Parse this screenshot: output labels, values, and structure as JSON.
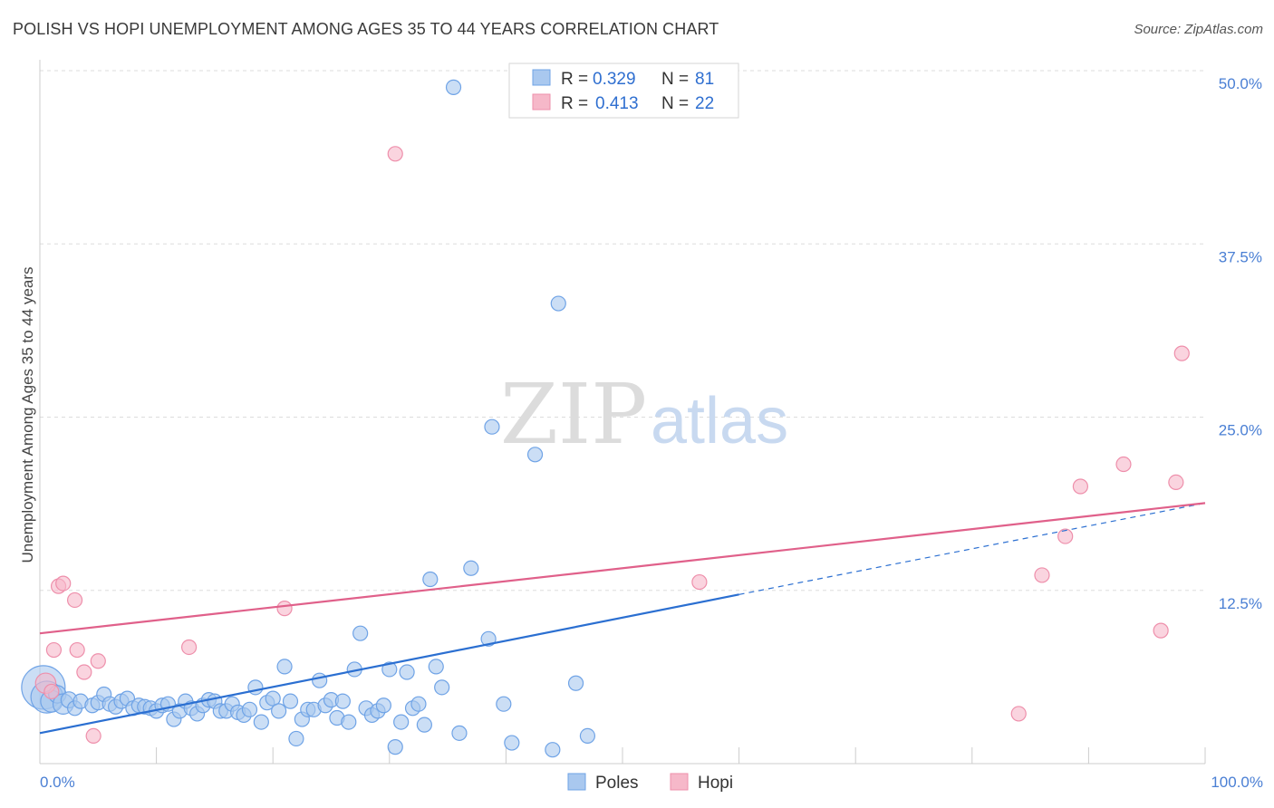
{
  "header": {
    "title": "POLISH VS HOPI UNEMPLOYMENT AMONG AGES 35 TO 44 YEARS CORRELATION CHART",
    "source": "Source: ZipAtlas.com"
  },
  "watermark": {
    "zip": "ZIP",
    "atlas": "atlas"
  },
  "legend": {
    "rows": [
      {
        "r_label": "R =",
        "r_value": "0.329",
        "n_label": "N =",
        "n_value": "81",
        "color": "#a9c8ef"
      },
      {
        "r_label": "R =",
        "r_value": "0.413",
        "n_label": "N =",
        "n_value": "22",
        "color": "#f6b8c9"
      }
    ]
  },
  "bottom_legend": {
    "items": [
      "Poles",
      "Hopi"
    ]
  },
  "chart_data": {
    "type": "scatter",
    "title": "POLISH VS HOPI UNEMPLOYMENT AMONG AGES 35 TO 44 YEARS CORRELATION CHART",
    "ylabel": "Unemployment Among Ages 35 to 44 years",
    "xlabel": "",
    "xlim": [
      0,
      100
    ],
    "ylim": [
      0,
      50
    ],
    "x_tick_labels": [
      "0.0%",
      "100.0%"
    ],
    "y_ticks": [
      12.5,
      25.0,
      37.5,
      50.0
    ],
    "y_tick_labels": [
      "12.5%",
      "25.0%",
      "37.5%",
      "50.0%"
    ],
    "grid": true,
    "legend_position": "top-center",
    "series": [
      {
        "name": "Poles",
        "color": "#6fa3e6",
        "fill": "#a9c8ef",
        "trend": {
          "x": [
            0,
            60
          ],
          "y": [
            2.2,
            12.2
          ],
          "dashed_to": [
            100,
            18.8
          ],
          "color": "#2b6fd1"
        },
        "points": [
          [
            0.3,
            5.5,
            3
          ],
          [
            0.6,
            4.8,
            2.2
          ],
          [
            1.0,
            4.5,
            1.5
          ],
          [
            1.5,
            5.0,
            1.2
          ],
          [
            2.0,
            4.3,
            1.4
          ],
          [
            2.5,
            4.6,
            1.1
          ],
          [
            3.0,
            4.0,
            1
          ],
          [
            3.5,
            4.5,
            1
          ],
          [
            4.5,
            4.2,
            1
          ],
          [
            5.0,
            4.4,
            1
          ],
          [
            5.5,
            5.0,
            1
          ],
          [
            6.0,
            4.3,
            1
          ],
          [
            6.5,
            4.1,
            1
          ],
          [
            7.0,
            4.5,
            1
          ],
          [
            7.5,
            4.7,
            1
          ],
          [
            8.0,
            4.0,
            1
          ],
          [
            8.5,
            4.2,
            1
          ],
          [
            9.0,
            4.1,
            1
          ],
          [
            9.5,
            4.0,
            1
          ],
          [
            10.0,
            3.8,
            1
          ],
          [
            10.5,
            4.2,
            1
          ],
          [
            11.0,
            4.3,
            1
          ],
          [
            11.5,
            3.2,
            1
          ],
          [
            12.0,
            3.8,
            1
          ],
          [
            12.5,
            4.5,
            1
          ],
          [
            13.0,
            4.0,
            1
          ],
          [
            13.5,
            3.6,
            1
          ],
          [
            14.0,
            4.2,
            1
          ],
          [
            14.5,
            4.6,
            1
          ],
          [
            15.0,
            4.5,
            1
          ],
          [
            15.5,
            3.8,
            1
          ],
          [
            16.0,
            3.8,
            1
          ],
          [
            16.5,
            4.3,
            1
          ],
          [
            17.0,
            3.7,
            1
          ],
          [
            17.5,
            3.5,
            1
          ],
          [
            18.0,
            3.9,
            1
          ],
          [
            18.5,
            5.5,
            1
          ],
          [
            19.0,
            3.0,
            1
          ],
          [
            19.5,
            4.4,
            1
          ],
          [
            20.0,
            4.7,
            1
          ],
          [
            20.5,
            3.8,
            1
          ],
          [
            21.0,
            7.0,
            1
          ],
          [
            21.5,
            4.5,
            1
          ],
          [
            22.0,
            1.8,
            1
          ],
          [
            22.5,
            3.2,
            1
          ],
          [
            23.0,
            3.9,
            1
          ],
          [
            23.5,
            3.9,
            1
          ],
          [
            24.0,
            6.0,
            1
          ],
          [
            24.5,
            4.2,
            1
          ],
          [
            25.0,
            4.6,
            1
          ],
          [
            25.5,
            3.3,
            1
          ],
          [
            26.0,
            4.5,
            1
          ],
          [
            26.5,
            3.0,
            1
          ],
          [
            27.0,
            6.8,
            1
          ],
          [
            27.5,
            9.4,
            1
          ],
          [
            28.0,
            4.0,
            1
          ],
          [
            28.5,
            3.5,
            1
          ],
          [
            29.0,
            3.8,
            1
          ],
          [
            29.5,
            4.2,
            1
          ],
          [
            30.0,
            6.8,
            1
          ],
          [
            30.5,
            1.2,
            1
          ],
          [
            31.0,
            3.0,
            1
          ],
          [
            31.5,
            6.6,
            1
          ],
          [
            32.0,
            4.0,
            1
          ],
          [
            32.5,
            4.3,
            1
          ],
          [
            33.0,
            2.8,
            1
          ],
          [
            33.5,
            13.3,
            1
          ],
          [
            34.0,
            7.0,
            1
          ],
          [
            34.5,
            5.5,
            1
          ],
          [
            35.5,
            48.8,
            1
          ],
          [
            36.0,
            2.2,
            1
          ],
          [
            37.0,
            14.1,
            1
          ],
          [
            38.5,
            9.0,
            1
          ],
          [
            38.8,
            24.3,
            1
          ],
          [
            39.8,
            4.3,
            1
          ],
          [
            40.5,
            1.5,
            1
          ],
          [
            42.5,
            22.3,
            1
          ],
          [
            44.0,
            1.0,
            1
          ],
          [
            44.5,
            33.2,
            1
          ],
          [
            46.0,
            5.8,
            1
          ],
          [
            47.0,
            2.0,
            1
          ]
        ]
      },
      {
        "name": "Hopi",
        "color": "#ee8fab",
        "fill": "#f6b8c9",
        "trend": {
          "x": [
            0,
            100
          ],
          "y": [
            9.4,
            18.8
          ],
          "color": "#e0608a"
        },
        "points": [
          [
            0.5,
            5.8,
            1.4
          ],
          [
            1.0,
            5.2,
            1
          ],
          [
            1.2,
            8.2,
            1
          ],
          [
            1.6,
            12.8,
            1
          ],
          [
            2.0,
            13.0,
            1
          ],
          [
            3.0,
            11.8,
            1
          ],
          [
            3.2,
            8.2,
            1
          ],
          [
            3.8,
            6.6,
            1
          ],
          [
            4.6,
            2.0,
            1
          ],
          [
            5.0,
            7.4,
            1
          ],
          [
            12.8,
            8.4,
            1
          ],
          [
            21.0,
            11.2,
            1
          ],
          [
            30.5,
            44.0,
            1
          ],
          [
            56.6,
            13.1,
            1
          ],
          [
            84.0,
            3.6,
            1
          ],
          [
            86.0,
            13.6,
            1
          ],
          [
            88.0,
            16.4,
            1
          ],
          [
            89.3,
            20.0,
            1
          ],
          [
            93.0,
            21.6,
            1
          ],
          [
            96.2,
            9.6,
            1
          ],
          [
            97.5,
            20.3,
            1
          ],
          [
            98.0,
            29.6,
            1
          ]
        ]
      }
    ]
  }
}
